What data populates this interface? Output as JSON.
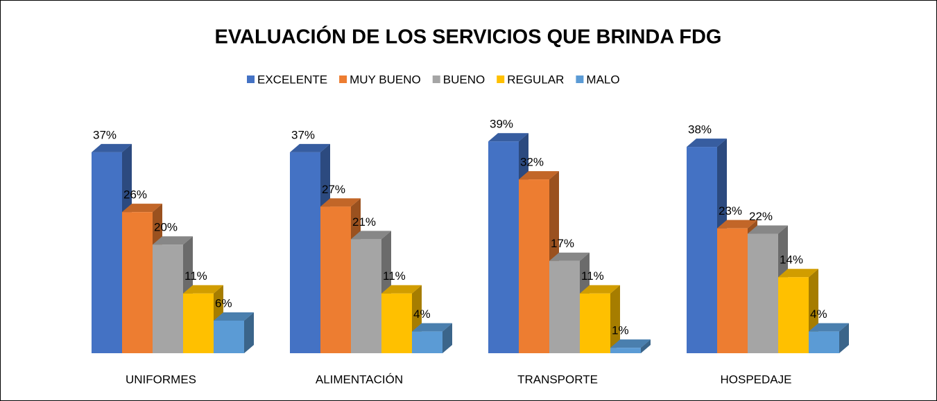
{
  "chart_data": {
    "type": "bar3d",
    "title": "EVALUACIÓN DE LOS SERVICIOS QUE BRINDA FDG",
    "categories": [
      "UNIFORMES",
      "ALIMENTACIÓN",
      "TRANSPORTE",
      "HOSPEDAJE"
    ],
    "legend": "top",
    "series": [
      {
        "name": "EXCELENTE",
        "color": "#4472c4",
        "values": [
          37,
          37,
          39,
          38
        ],
        "value_labels": [
          "37%",
          "37%",
          "39%",
          "38%"
        ]
      },
      {
        "name": "MUY BUENO",
        "color": "#ed7d31",
        "values": [
          26,
          27,
          32,
          23
        ],
        "value_labels": [
          "26%",
          "27%",
          "32%",
          "23%"
        ]
      },
      {
        "name": "BUENO",
        "color": "#a5a5a5",
        "values": [
          20,
          21,
          17,
          22
        ],
        "value_labels": [
          "20%",
          "21%",
          "17%",
          "22%"
        ]
      },
      {
        "name": "REGULAR",
        "color": "#ffc000",
        "values": [
          11,
          11,
          11,
          14
        ],
        "value_labels": [
          "11%",
          "11%",
          "11%",
          "14%"
        ]
      },
      {
        "name": "MALO",
        "color": "#5b9bd5",
        "values": [
          6,
          4,
          1,
          4
        ],
        "value_labels": [
          "6%",
          "4%",
          "1%",
          "4%"
        ]
      }
    ]
  }
}
